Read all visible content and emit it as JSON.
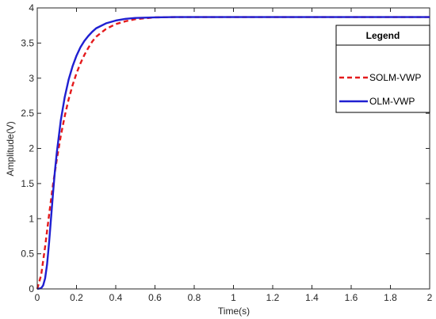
{
  "chart_data": {
    "type": "line",
    "title": "",
    "xlabel": "Time(s)",
    "ylabel": "Amplitude(V)",
    "xlim": [
      0,
      2
    ],
    "ylim": [
      0,
      4
    ],
    "xticks": [
      0,
      0.2,
      0.4,
      0.6,
      0.8,
      1,
      1.2,
      1.4,
      1.6,
      1.8,
      2
    ],
    "xtick_labels": [
      "0",
      "0.2",
      "0.4",
      "0.6",
      "0.8",
      "1",
      "1.2",
      "1.4",
      "1.6",
      "1.8",
      "2"
    ],
    "yticks": [
      0,
      0.5,
      1,
      1.5,
      2,
      2.5,
      3,
      3.5,
      4
    ],
    "ytick_labels": [
      "0",
      "0.5",
      "1",
      "1.5",
      "2",
      "2.5",
      "3",
      "3.5",
      "4"
    ],
    "grid": false,
    "legend": {
      "title": "Legend",
      "placement": "top-right",
      "entries": [
        "SOLM-VWP",
        "OLM-VWP"
      ]
    },
    "series": [
      {
        "name": "SOLM-VWP",
        "style": "dashed",
        "color": "#e41a1c",
        "x": [
          0,
          0.02,
          0.04,
          0.06,
          0.08,
          0.1,
          0.12,
          0.14,
          0.16,
          0.18,
          0.2,
          0.22,
          0.24,
          0.26,
          0.28,
          0.3,
          0.35,
          0.4,
          0.45,
          0.5,
          0.6,
          0.7,
          0.8,
          1,
          1.2,
          1.4,
          1.6,
          1.8,
          2
        ],
        "y": [
          0,
          0.2,
          0.6,
          1.05,
          1.48,
          1.85,
          2.18,
          2.46,
          2.7,
          2.9,
          3.07,
          3.21,
          3.33,
          3.43,
          3.52,
          3.59,
          3.7,
          3.77,
          3.81,
          3.84,
          3.865,
          3.87,
          3.87,
          3.87,
          3.87,
          3.87,
          3.87,
          3.87,
          3.87
        ]
      },
      {
        "name": "OLM-VWP",
        "style": "solid",
        "color": "#1f1fd1",
        "x": [
          0,
          0.02,
          0.03,
          0.04,
          0.05,
          0.06,
          0.07,
          0.08,
          0.09,
          0.1,
          0.12,
          0.14,
          0.16,
          0.18,
          0.2,
          0.22,
          0.24,
          0.26,
          0.28,
          0.3,
          0.35,
          0.4,
          0.45,
          0.5,
          0.6,
          0.7,
          0.8,
          1,
          1.2,
          1.4,
          1.6,
          1.8,
          2
        ],
        "y": [
          0,
          0.01,
          0.05,
          0.15,
          0.35,
          0.65,
          1.0,
          1.35,
          1.68,
          1.95,
          2.4,
          2.73,
          2.98,
          3.17,
          3.32,
          3.44,
          3.53,
          3.6,
          3.66,
          3.71,
          3.78,
          3.82,
          3.845,
          3.857,
          3.866,
          3.87,
          3.87,
          3.87,
          3.87,
          3.87,
          3.87,
          3.87,
          3.87
        ]
      }
    ]
  }
}
